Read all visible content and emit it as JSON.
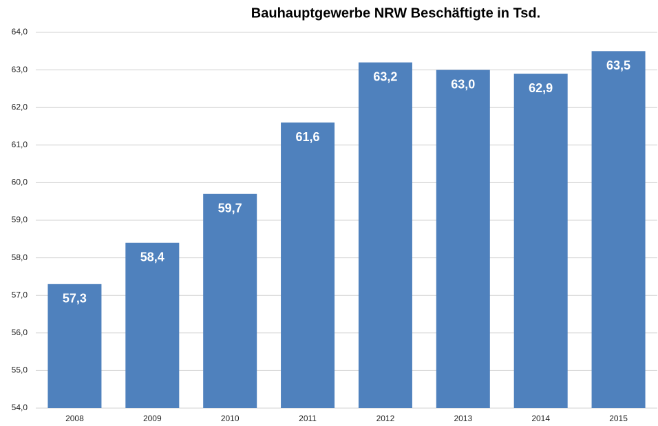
{
  "chart_data": {
    "type": "bar",
    "title": "Bauhauptgewerbe NRW Beschäftigte in Tsd.",
    "categories": [
      "2008",
      "2009",
      "2010",
      "2011",
      "2012",
      "2013",
      "2014",
      "2015"
    ],
    "values": [
      57.3,
      58.4,
      59.7,
      61.6,
      63.2,
      63.0,
      62.9,
      63.5
    ],
    "value_labels": [
      "57,3",
      "58,4",
      "59,7",
      "61,6",
      "63,2",
      "63,0",
      "62,9",
      "63,5"
    ],
    "color": "#4f81bd",
    "ylim": [
      54,
      64
    ],
    "yticks": [
      {
        "value": 54,
        "label": "54,0"
      },
      {
        "value": 55,
        "label": "55,0"
      },
      {
        "value": 56,
        "label": "56,0"
      },
      {
        "value": 57,
        "label": "57,0"
      },
      {
        "value": 58,
        "label": "58,0"
      },
      {
        "value": 59,
        "label": "59,0"
      },
      {
        "value": 60,
        "label": "60,0"
      },
      {
        "value": 61,
        "label": "61,0"
      },
      {
        "value": 62,
        "label": "62,0"
      },
      {
        "value": 63,
        "label": "63,0"
      },
      {
        "value": 64,
        "label": "64,0"
      }
    ],
    "grid": true
  }
}
